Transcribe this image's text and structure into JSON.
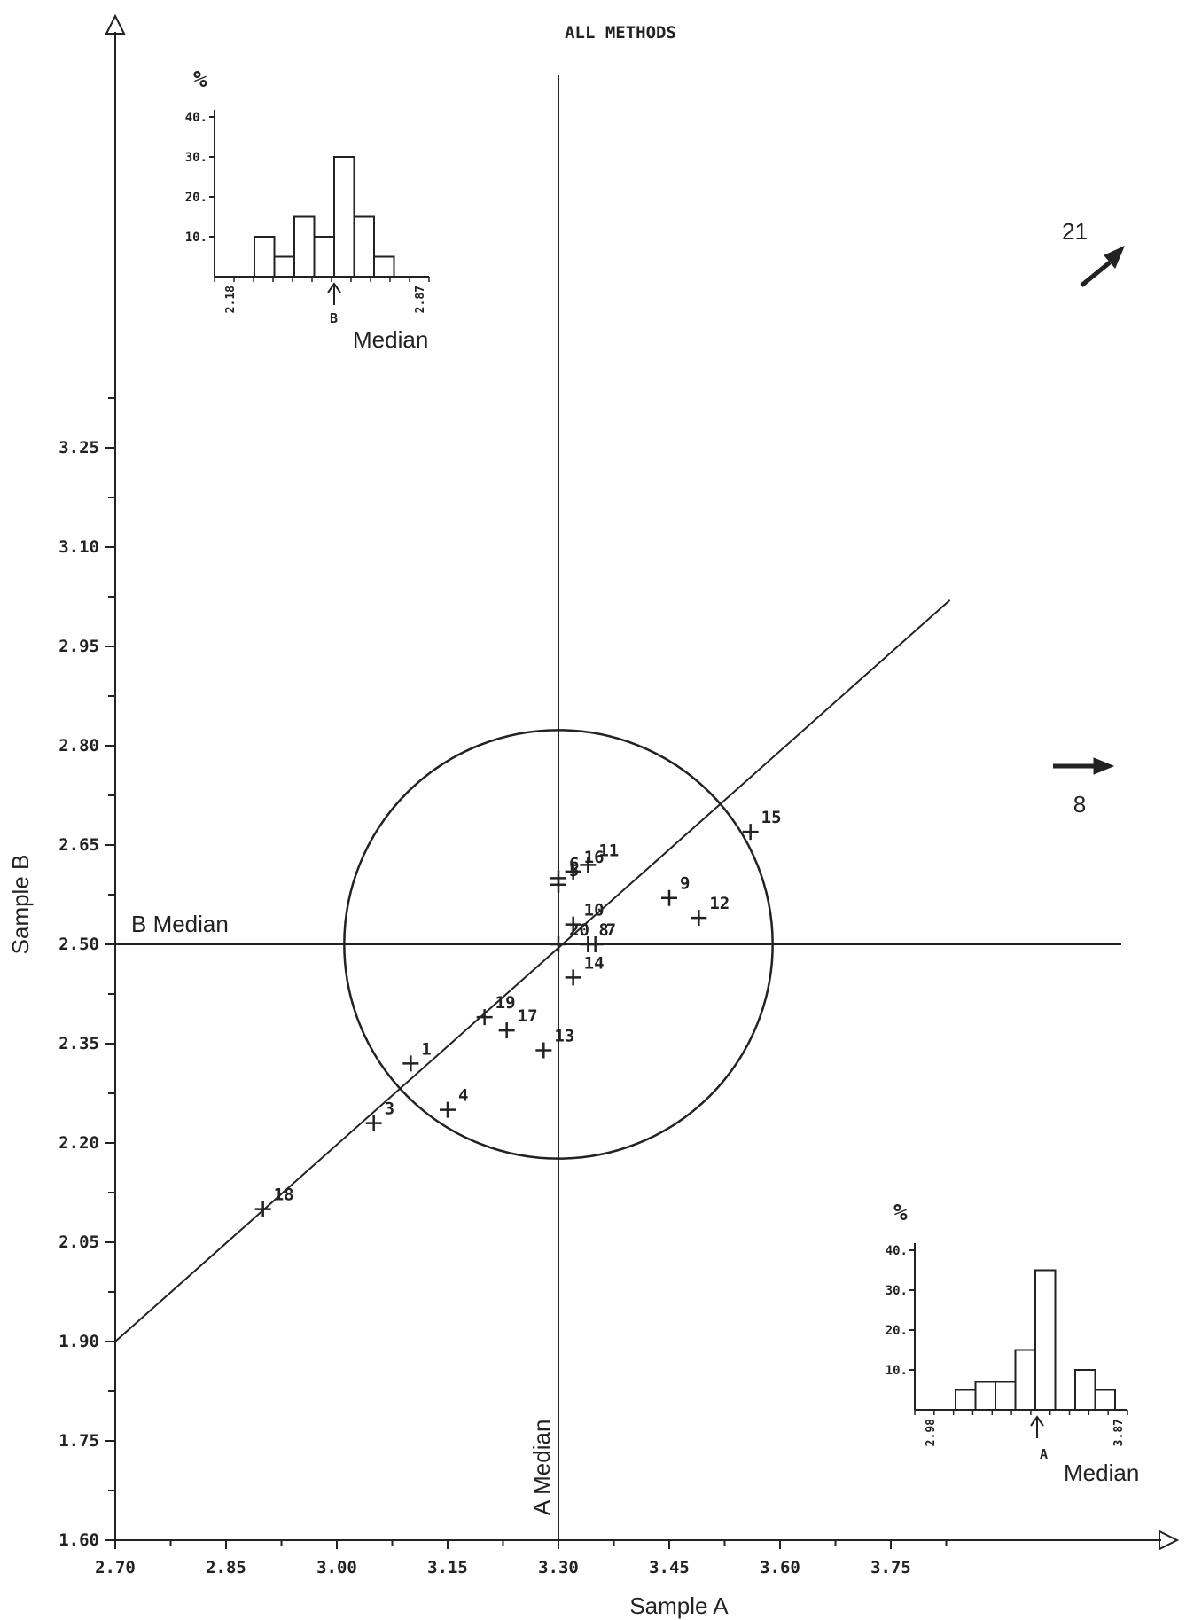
{
  "chart_data": {
    "type": "scatter",
    "title": "ALL METHODS",
    "xlabel": "Sample A",
    "ylabel": "Sample B",
    "xlim": [
      2.7,
      3.87
    ],
    "ylim": [
      1.6,
      3.28
    ],
    "x_ticks": [
      "2.70",
      "2.85",
      "3.00",
      "3.15",
      "3.30",
      "3.45",
      "3.60",
      "3.75"
    ],
    "y_ticks": [
      "1.60",
      "1.75",
      "1.90",
      "2.05",
      "2.20",
      "2.35",
      "2.50",
      "2.65",
      "2.80",
      "2.95",
      "3.10",
      "3.25"
    ],
    "x_tick_values": [
      2.7,
      2.85,
      3.0,
      3.15,
      3.3,
      3.45,
      3.6,
      3.75
    ],
    "y_tick_values": [
      1.6,
      1.75,
      1.9,
      2.05,
      2.2,
      2.35,
      2.5,
      2.65,
      2.8,
      2.95,
      3.1,
      3.25
    ],
    "median_a": 3.3,
    "median_b": 2.5,
    "median_a_label": "A Median",
    "median_b_label": "B Median",
    "circle": {
      "center": [
        3.3,
        2.5
      ],
      "radius_x": 0.29
    },
    "diagonal": {
      "from": [
        2.7,
        1.9
      ],
      "to": [
        3.83,
        3.02
      ]
    },
    "points": [
      {
        "label": "1",
        "x": 3.1,
        "y": 2.32
      },
      {
        "label": "3",
        "x": 3.05,
        "y": 2.23
      },
      {
        "label": "4",
        "x": 3.15,
        "y": 2.25
      },
      {
        "label": "5",
        "x": 3.3,
        "y": 2.59
      },
      {
        "label": "6",
        "x": 3.3,
        "y": 2.6
      },
      {
        "label": "7",
        "x": 3.35,
        "y": 2.5
      },
      {
        "label": "8",
        "x": 3.34,
        "y": 2.5
      },
      {
        "label": "9",
        "x": 3.45,
        "y": 2.57
      },
      {
        "label": "10",
        "x": 3.32,
        "y": 2.53
      },
      {
        "label": "11",
        "x": 3.34,
        "y": 2.62
      },
      {
        "label": "12",
        "x": 3.49,
        "y": 2.54
      },
      {
        "label": "13",
        "x": 3.28,
        "y": 2.34
      },
      {
        "label": "14",
        "x": 3.32,
        "y": 2.45
      },
      {
        "label": "15",
        "x": 3.56,
        "y": 2.67
      },
      {
        "label": "16",
        "x": 3.32,
        "y": 2.61
      },
      {
        "label": "17",
        "x": 3.23,
        "y": 2.37
      },
      {
        "label": "18",
        "x": 2.9,
        "y": 2.1
      },
      {
        "label": "19",
        "x": 3.2,
        "y": 2.39
      },
      {
        "label": "20",
        "x": 3.3,
        "y": 2.5
      }
    ],
    "outliers": [
      {
        "label": "21",
        "direction": "up-right"
      },
      {
        "label": "8",
        "direction": "right"
      }
    ],
    "histogram_b": {
      "ylabel": "%",
      "y_ticks": [
        "10.",
        "20.",
        "30.",
        "40."
      ],
      "y_tick_values": [
        10,
        20,
        30,
        40
      ],
      "x_start": "2.18",
      "x_end": "2.87",
      "bars": [
        10,
        5,
        15,
        10,
        30,
        15,
        5
      ],
      "median_marker": "B",
      "median_label": "Median"
    },
    "histogram_a": {
      "ylabel": "%",
      "y_ticks": [
        "10.",
        "20.",
        "30.",
        "40."
      ],
      "y_tick_values": [
        10,
        20,
        30,
        40
      ],
      "x_start": "2.98",
      "x_end": "3.87",
      "bars": [
        5,
        7,
        7,
        15,
        35,
        0,
        10,
        5
      ],
      "median_marker": "A",
      "median_label": "Median"
    }
  }
}
